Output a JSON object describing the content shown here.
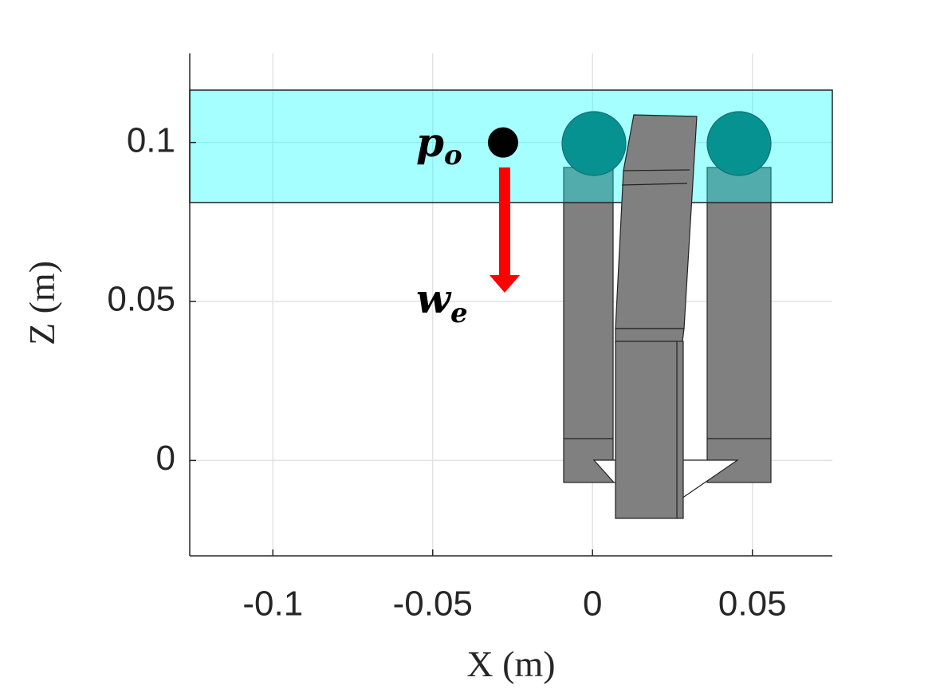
{
  "chart_data": {
    "type": "scatter",
    "xlabel": "X (m)",
    "ylabel": "Z (m)",
    "xlim": [
      -0.126,
      0.075
    ],
    "ylim": [
      -0.03,
      0.128
    ],
    "xticks": [
      -0.1,
      -0.05,
      0,
      0.05
    ],
    "yticks": [
      0,
      0.05,
      0.1
    ],
    "grid": true,
    "points": [
      {
        "base": "p",
        "sub": "o",
        "x": -0.028,
        "y": 0.1,
        "color": "#000000"
      }
    ],
    "arrow_label": {
      "base": "w",
      "sub": "e"
    }
  }
}
